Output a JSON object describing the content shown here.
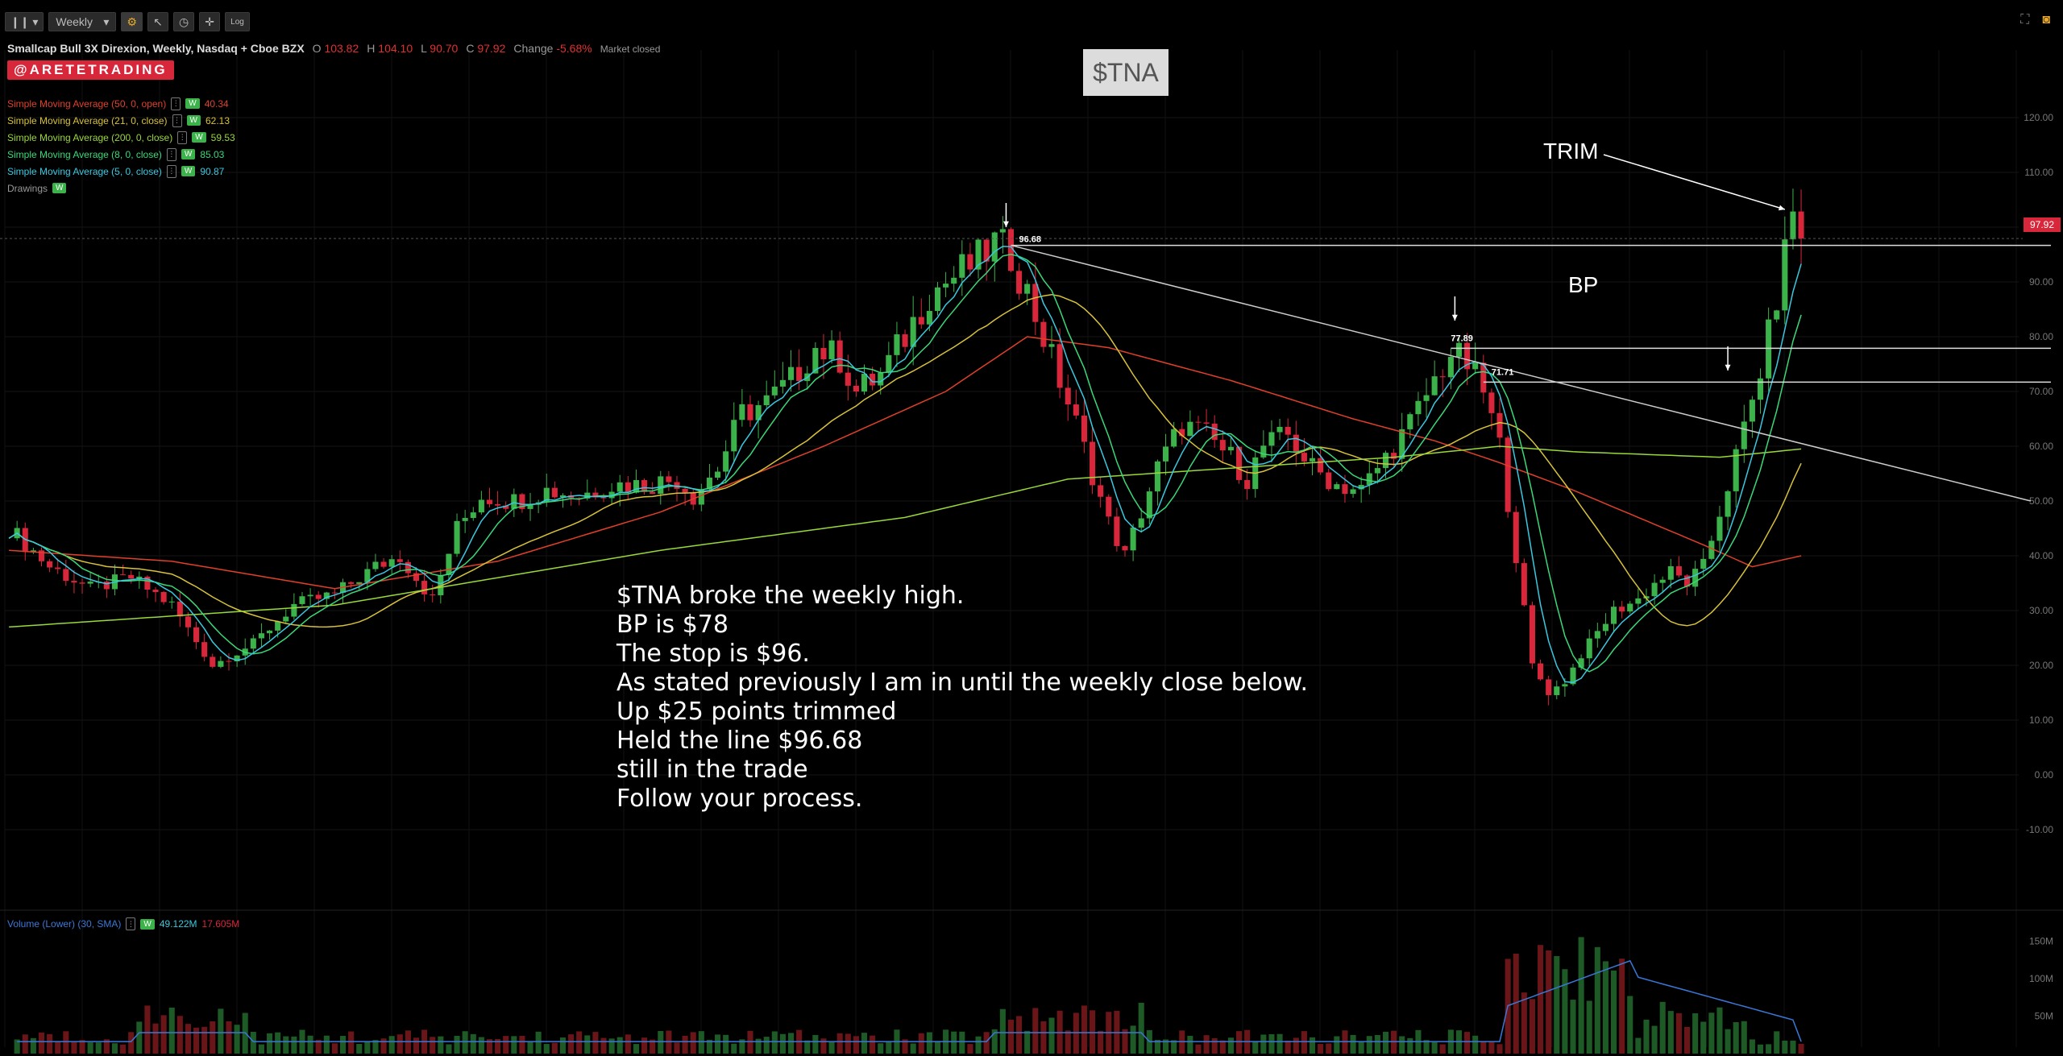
{
  "toolbar": {
    "style_icon": "candles-icon",
    "timeframe": "Weekly",
    "log_label": "Log"
  },
  "header": {
    "title": "Smallcap Bull 3X Direxion, Weekly, Nasdaq + Cboe BZX",
    "open_label": "O",
    "open": "103.82",
    "high_label": "H",
    "high": "104.10",
    "low_label": "L",
    "low": "90.70",
    "close_label": "C",
    "close": "97.92",
    "change_label": "Change",
    "change": "-5.68%",
    "status": "Market closed"
  },
  "brand": "@ARETETRADING",
  "studies": [
    {
      "label": "Simple Moving Average (50, 0, open)",
      "value": "40.34",
      "color": "#e0402a"
    },
    {
      "label": "Simple Moving Average (21, 0, close)",
      "value": "62.13",
      "color": "#d8c23a"
    },
    {
      "label": "Simple Moving Average (200, 0, close)",
      "value": "59.53",
      "color": "#9ad83a"
    },
    {
      "label": "Simple Moving Average (8, 0, close)",
      "value": "85.03",
      "color": "#3ad878"
    },
    {
      "label": "Simple Moving Average (5, 0, close)",
      "value": "90.87",
      "color": "#3ac8e0"
    }
  ],
  "drawings_label": "Drawings",
  "w_badge": "W",
  "ticker_box": "$TNA",
  "annotation_lines": [
    "$TNA broke the weekly high.",
    "BP is $78",
    "The stop is $96.",
    "As stated previously I am in until the weekly close below.",
    "Up $25 points trimmed",
    "Held the line $96.68",
    "still in the trade",
    "Follow your process."
  ],
  "trim_label": "TRIM",
  "bp_label": "BP",
  "level_labels": {
    "high": "96.68",
    "bp": "77.89",
    "support": "71.71"
  },
  "last_price_flag": "97.92",
  "volume_legend": {
    "label": "Volume (Lower) (30, SMA)",
    "value1": "49.122M",
    "value2": "17.605M"
  },
  "colors": {
    "up": "#3cb34a",
    "down": "#d8263a",
    "sma50": "#e0402a",
    "sma21": "#d8c23a",
    "sma200": "#9ad83a",
    "sma8": "#3ad878",
    "sma5": "#3ac8e0",
    "volume_sma": "#3a78d8"
  },
  "chart_data": {
    "type": "candlestick",
    "timeframe": "Weekly",
    "ylim": [
      -15,
      125
    ],
    "y_ticks": [
      "120.00",
      "110.00",
      "100.00",
      "90.00",
      "80.00",
      "70.00",
      "60.00",
      "50.00",
      "40.00",
      "30.00",
      "20.00",
      "10.00",
      "0.00",
      "-10.00"
    ],
    "vol_ticks": [
      "150M",
      "100M",
      "50M"
    ],
    "horizontal_levels": [
      96.68,
      77.89,
      71.71
    ],
    "trendline": {
      "from": 96.68,
      "to": 50.0
    },
    "price_path": [
      [
        0,
        45
      ],
      [
        5,
        38
      ],
      [
        10,
        34
      ],
      [
        15,
        36
      ],
      [
        20,
        31
      ],
      [
        25,
        20
      ],
      [
        30,
        24
      ],
      [
        35,
        31
      ],
      [
        40,
        33
      ],
      [
        45,
        38
      ],
      [
        48,
        40
      ],
      [
        52,
        32
      ],
      [
        55,
        45
      ],
      [
        58,
        51
      ],
      [
        62,
        50
      ],
      [
        66,
        52
      ],
      [
        70,
        51
      ],
      [
        74,
        53
      ],
      [
        78,
        53
      ],
      [
        82,
        54
      ],
      [
        84,
        51
      ],
      [
        87,
        56
      ],
      [
        90,
        66
      ],
      [
        93,
        68
      ],
      [
        96,
        72
      ],
      [
        99,
        78
      ],
      [
        102,
        76
      ],
      [
        104,
        70
      ],
      [
        107,
        73
      ],
      [
        110,
        80
      ],
      [
        113,
        88
      ],
      [
        115,
        90
      ],
      [
        117,
        92
      ],
      [
        119,
        94
      ],
      [
        121,
        97
      ],
      [
        123,
        95
      ],
      [
        125,
        88
      ],
      [
        127,
        80
      ],
      [
        129,
        72
      ],
      [
        131,
        64
      ],
      [
        133,
        55
      ],
      [
        135,
        46
      ],
      [
        137,
        40
      ],
      [
        139,
        48
      ],
      [
        141,
        56
      ],
      [
        144,
        64
      ],
      [
        147,
        62
      ],
      [
        150,
        58
      ],
      [
        152,
        54
      ],
      [
        154,
        60
      ],
      [
        157,
        62
      ],
      [
        160,
        56
      ],
      [
        163,
        53
      ],
      [
        166,
        52
      ],
      [
        169,
        58
      ],
      [
        172,
        64
      ],
      [
        175,
        72
      ],
      [
        177,
        77
      ],
      [
        179,
        75
      ],
      [
        181,
        70
      ],
      [
        183,
        60
      ],
      [
        185,
        40
      ],
      [
        187,
        20
      ],
      [
        189,
        15
      ],
      [
        191,
        17
      ],
      [
        193,
        22
      ],
      [
        195,
        26
      ],
      [
        197,
        30
      ],
      [
        200,
        32
      ],
      [
        202,
        35
      ],
      [
        204,
        37
      ],
      [
        206,
        35
      ],
      [
        208,
        38
      ],
      [
        210,
        48
      ],
      [
        212,
        58
      ],
      [
        214,
        68
      ],
      [
        216,
        80
      ],
      [
        218,
        95
      ],
      [
        219,
        104
      ],
      [
        220,
        97.92
      ]
    ],
    "sma50_path": [
      [
        0,
        41
      ],
      [
        20,
        39
      ],
      [
        40,
        34
      ],
      [
        60,
        39
      ],
      [
        80,
        48
      ],
      [
        100,
        60
      ],
      [
        115,
        70
      ],
      [
        125,
        80
      ],
      [
        135,
        78
      ],
      [
        150,
        72
      ],
      [
        165,
        65
      ],
      [
        175,
        61
      ],
      [
        183,
        57
      ],
      [
        192,
        52
      ],
      [
        200,
        47
      ],
      [
        208,
        42
      ],
      [
        214,
        38
      ],
      [
        220,
        40
      ]
    ],
    "sma200_path": [
      [
        0,
        27
      ],
      [
        40,
        31
      ],
      [
        80,
        41
      ],
      [
        110,
        47
      ],
      [
        130,
        54
      ],
      [
        150,
        56
      ],
      [
        170,
        58
      ],
      [
        183,
        60
      ],
      [
        192,
        59
      ],
      [
        210,
        58
      ],
      [
        220,
        59.5
      ]
    ]
  }
}
